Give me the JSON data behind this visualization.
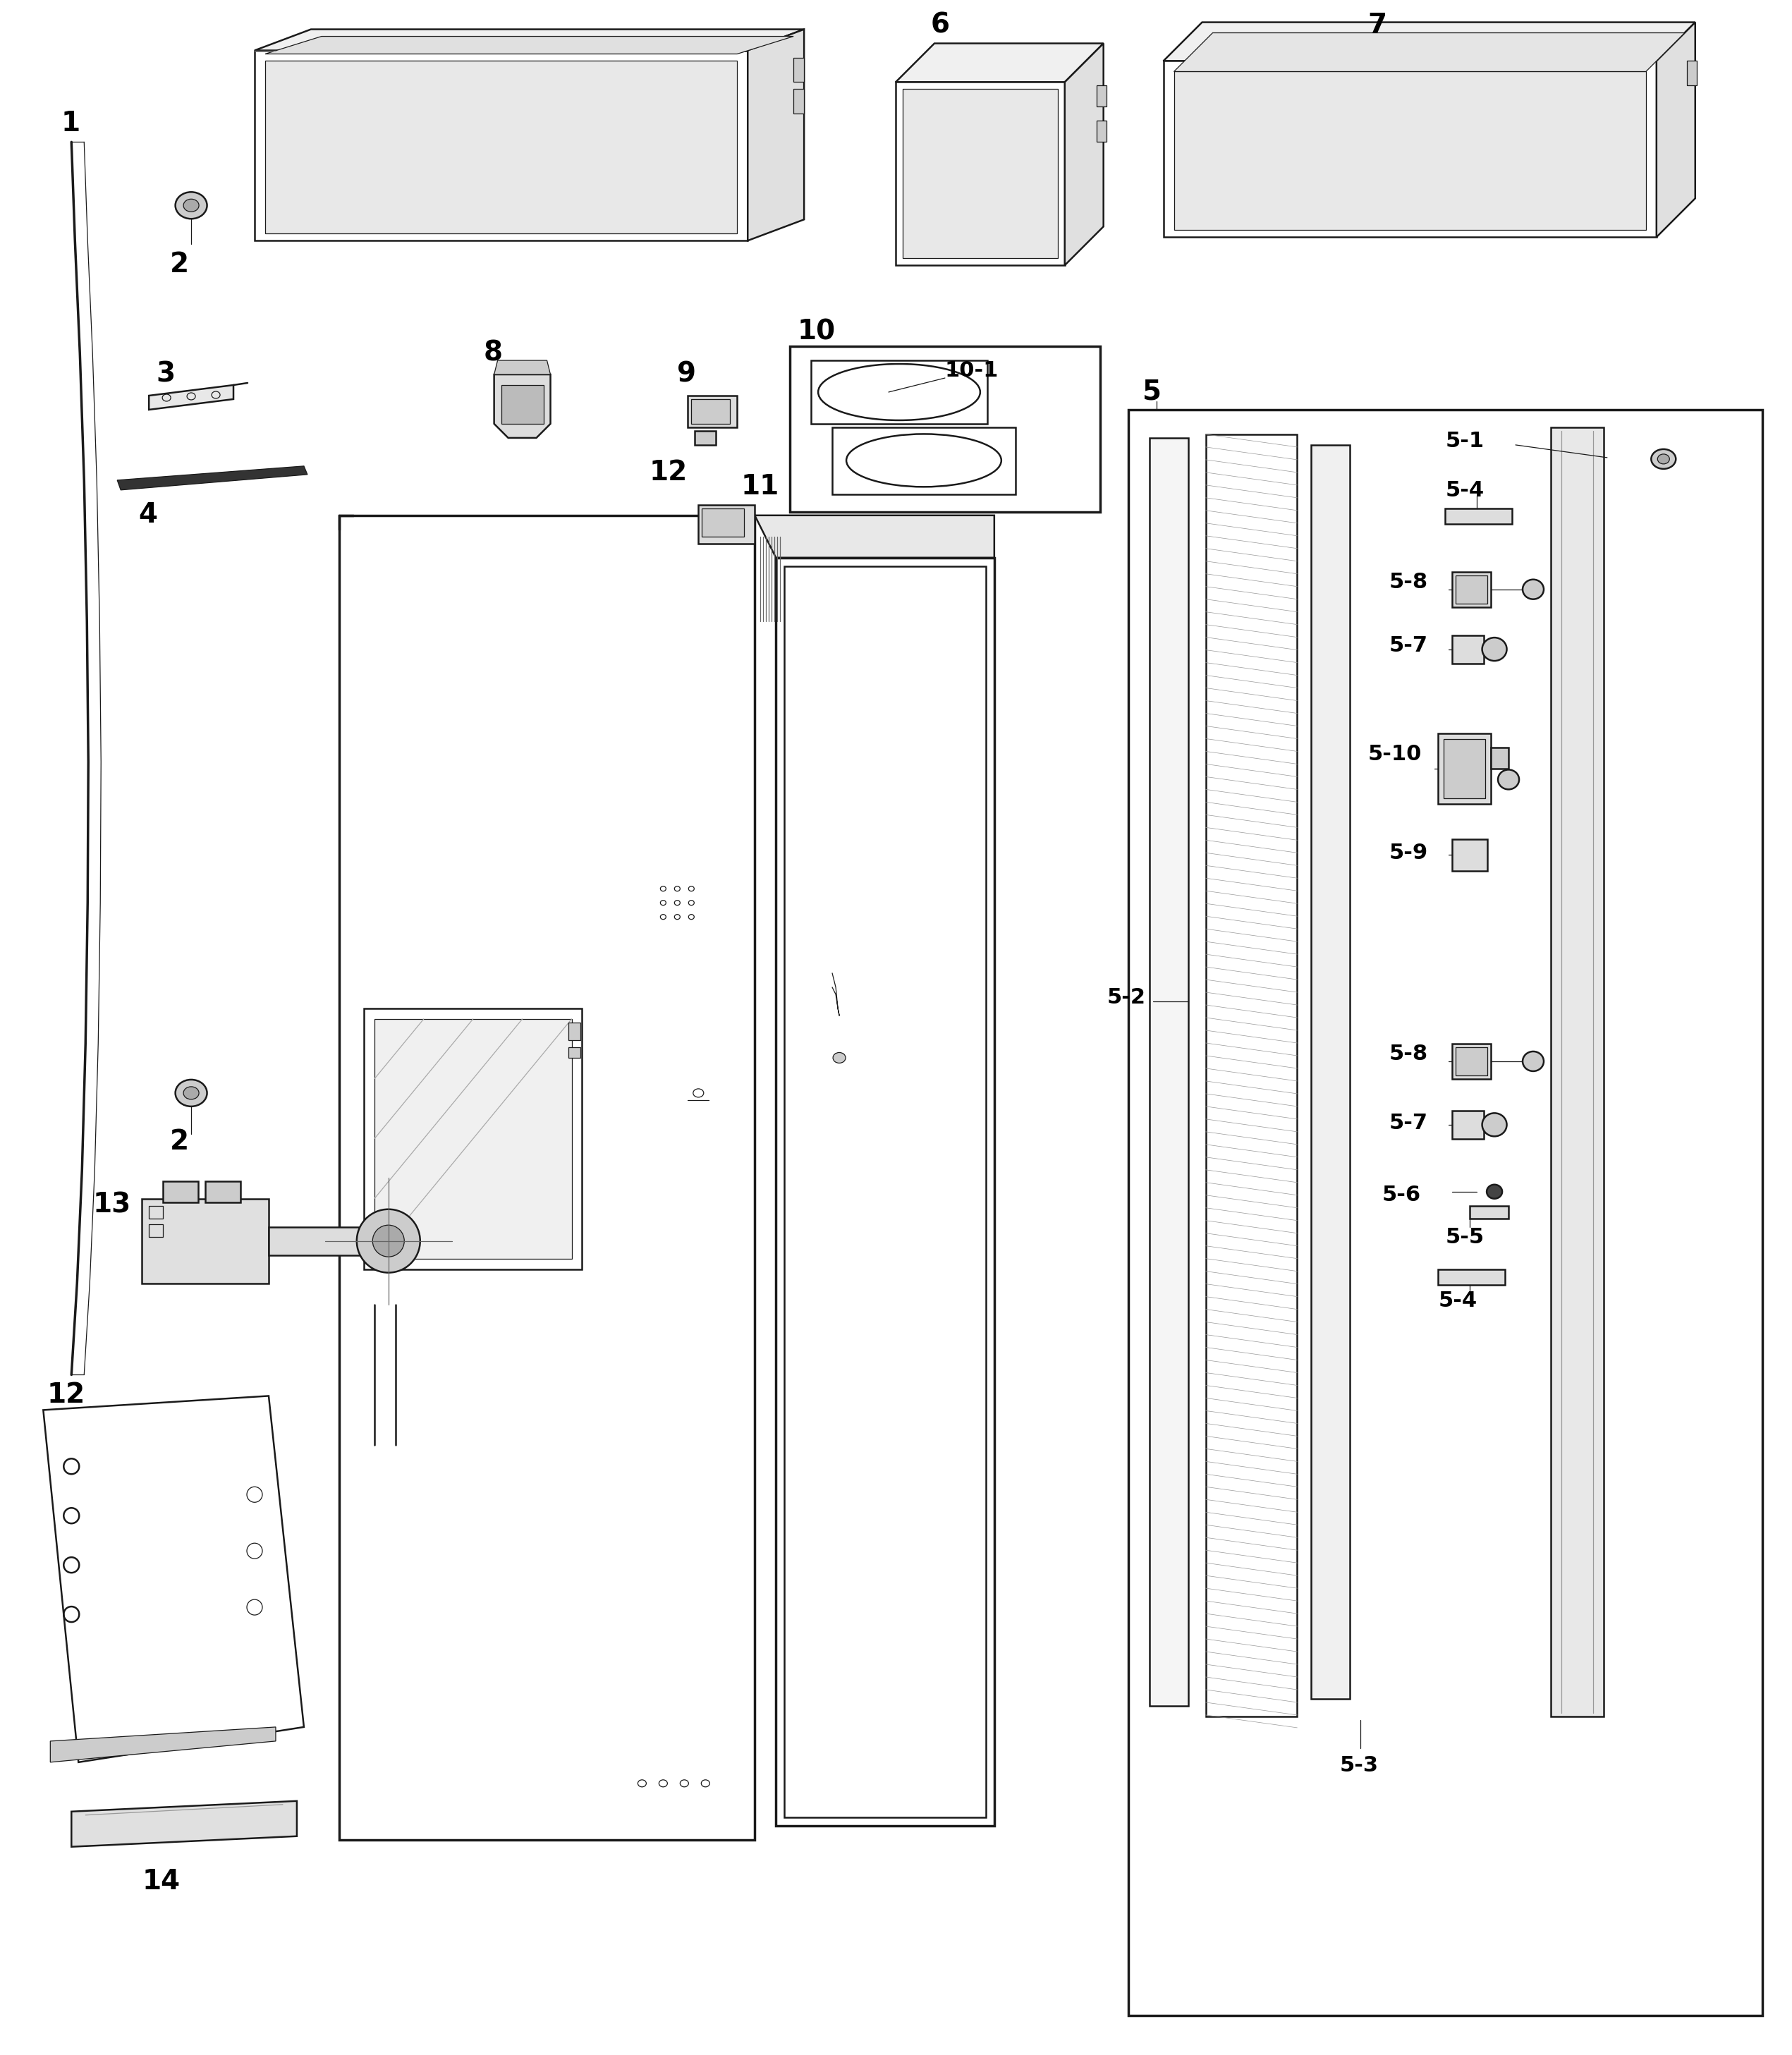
{
  "bg_color": "#ffffff",
  "fig_width": 25.41,
  "fig_height": 29.14,
  "line_color": "#1a1a1a",
  "lw_main": 1.8,
  "lw_thick": 2.5,
  "lw_thin": 0.9,
  "label_fs": 28,
  "sublabel_fs": 22
}
